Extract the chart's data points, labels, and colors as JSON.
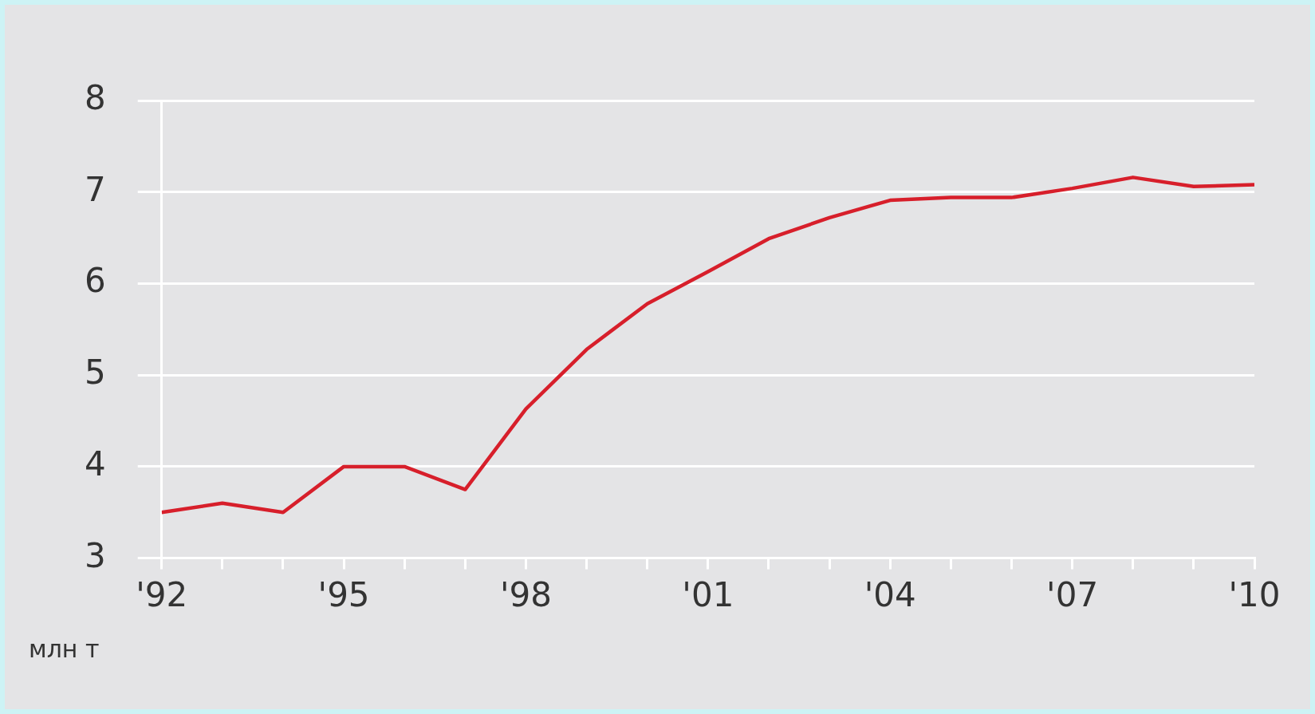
{
  "chart_data": {
    "type": "line",
    "ylabel": "млн т",
    "x": [
      1992,
      1993,
      1994,
      1995,
      1996,
      1997,
      1998,
      1999,
      2000,
      2001,
      2002,
      2003,
      2004,
      2005,
      2006,
      2007,
      2008,
      2009,
      2010
    ],
    "series": [
      {
        "color": "#d71f2b",
        "values": [
          3.5,
          3.6,
          3.5,
          4.0,
          4.0,
          3.75,
          4.63,
          5.28,
          5.78,
          6.13,
          6.49,
          6.72,
          6.91,
          6.94,
          6.94,
          7.04,
          7.16,
          7.06,
          7.08
        ]
      }
    ],
    "xlim": [
      1992,
      2010
    ],
    "xticks": [
      {
        "value": 1992,
        "label": "'92"
      },
      {
        "value": 1993,
        "label": null
      },
      {
        "value": 1994,
        "label": null
      },
      {
        "value": 1995,
        "label": "'95"
      },
      {
        "value": 1996,
        "label": null
      },
      {
        "value": 1997,
        "label": null
      },
      {
        "value": 1998,
        "label": "'98"
      },
      {
        "value": 1999,
        "label": null
      },
      {
        "value": 2000,
        "label": null
      },
      {
        "value": 2001,
        "label": "'01"
      },
      {
        "value": 2002,
        "label": null
      },
      {
        "value": 2003,
        "label": null
      },
      {
        "value": 2004,
        "label": "'04"
      },
      {
        "value": 2005,
        "label": null
      },
      {
        "value": 2006,
        "label": null
      },
      {
        "value": 2007,
        "label": "'07"
      },
      {
        "value": 2008,
        "label": null
      },
      {
        "value": 2009,
        "label": null
      },
      {
        "value": 2010,
        "label": "'10"
      }
    ],
    "ylim": [
      3,
      8
    ],
    "yticks": [
      3,
      4,
      5,
      6,
      7,
      8
    ],
    "grid": "y",
    "legend": false,
    "marker": "none",
    "line_style": "solid"
  }
}
